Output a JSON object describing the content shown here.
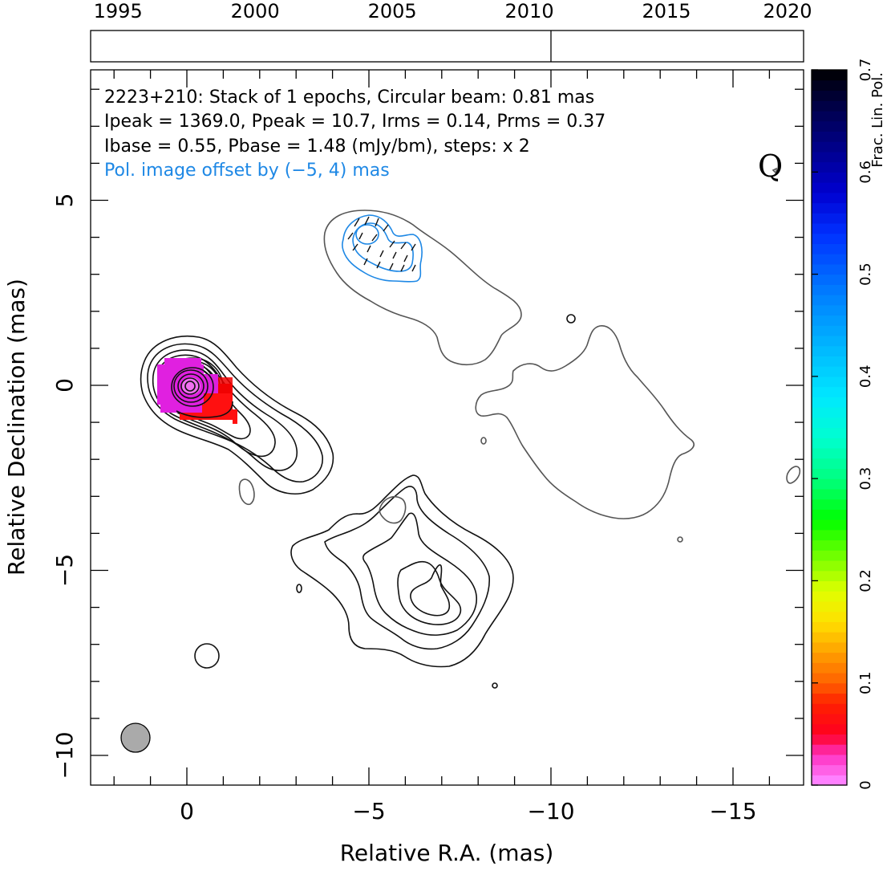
{
  "chart_data": {
    "type": "contour",
    "source": "2223+210",
    "annotation_lines": [
      "2223+210: Stack of 1 epochs, Circular beam: 0.81 mas",
      "Ipeak = 1369.0, Ppeak = 10.7, Irms = 0.14, Prms = 0.37",
      "Ibase = 0.55, Pbase = 1.48 (mJy/bm), steps: x 2"
    ],
    "offset_note": "Pol. image offset by (−5, 4) mas",
    "quality_label": "Q",
    "xlabel": "Relative R.A. (mas)",
    "ylabel": "Relative Declination (mas)",
    "xlim": [
      2.6,
      -16.3
    ],
    "ylim": [
      -10.8,
      8.6
    ],
    "x_ticks": [
      0,
      -5,
      -10,
      -15
    ],
    "x_tick_labels": [
      "0",
      "−5",
      "−10",
      "−15"
    ],
    "y_ticks": [
      5,
      0,
      -5,
      -10
    ],
    "y_tick_labels": [
      "5",
      "0",
      "−5",
      "−10"
    ],
    "colorbar": {
      "label": "Frac. Lin. Pol.",
      "range": [
        0,
        0.7
      ],
      "ticks": [
        0,
        0.1,
        0.2,
        0.3,
        0.4,
        0.5,
        0.6,
        0.7
      ],
      "tick_labels": [
        "0",
        "0.1",
        "0.2",
        "0.3",
        "0.4",
        "0.5",
        "0.6",
        "0.7"
      ]
    },
    "timeline": {
      "range": [
        1994,
        2020
      ],
      "ticks": [
        1995,
        2000,
        2005,
        2010,
        2015,
        2020
      ],
      "tick_labels": [
        "1995",
        "2000",
        "2005",
        "2010",
        "2015",
        "2020"
      ],
      "epochs": [
        2010.9
      ]
    },
    "beam_diameter_mas": 0.81,
    "colors": {
      "stokes_i_contour": "#111111",
      "negative_contour": "#555555",
      "polarization_contour": "#1e88e5",
      "offset_note": "#1e88e5",
      "beam_fill": "#aaaaaa"
    }
  }
}
